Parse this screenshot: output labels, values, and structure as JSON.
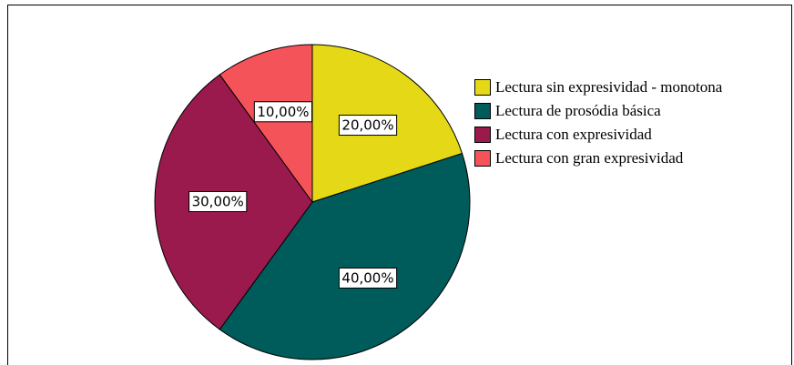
{
  "chart_data": {
    "type": "pie",
    "categories": [
      "Lectura sin expresividad - monotona",
      "Lectura de prosódia básica",
      "Lectura con expresividad",
      "Lectura con gran expresividad"
    ],
    "values": [
      20,
      40,
      30,
      10
    ],
    "value_labels": [
      "20,00%",
      "40,00%",
      "30,00%",
      "10,00%"
    ],
    "colors": [
      "#e5d817",
      "#005b5b",
      "#9a1a4d",
      "#f5535a"
    ],
    "legend": "right"
  }
}
